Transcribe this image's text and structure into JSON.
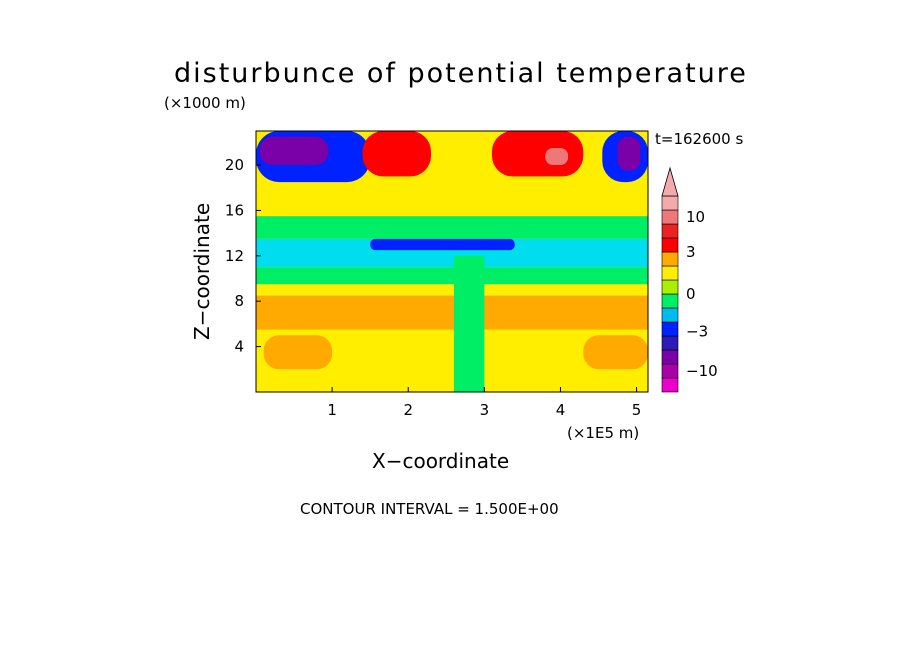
{
  "chart_data": {
    "type": "heatmap",
    "title": "disturbunce of potential temperature",
    "time_label": "t=162600 s",
    "xlabel": "X−coordinate",
    "ylabel": "Z−coordinate",
    "x_scale_label": "(×1E5 m)",
    "y_scale_label": "(×1000 m)",
    "xlim": [
      0,
      5.15
    ],
    "ylim": [
      0,
      23
    ],
    "x_ticks": [
      1,
      2,
      3,
      4,
      5
    ],
    "y_ticks": [
      4,
      8,
      12,
      16,
      20
    ],
    "contour_interval_text": "CONTOUR INTERVAL = 1.500E+00",
    "colorbar": {
      "tick_labels": [
        "10",
        "3",
        "0",
        "−3",
        "−10"
      ],
      "tick_values": [
        10,
        3,
        0,
        -3,
        -10
      ],
      "levels": [
        {
          "lo": -21,
          "hi": -12,
          "color": "#ee00cc"
        },
        {
          "lo": -12,
          "hi": -8,
          "color": "#aa00aa"
        },
        {
          "lo": -8,
          "hi": -5,
          "color": "#7a00a8"
        },
        {
          "lo": -5,
          "hi": -3.5,
          "color": "#2e1ab4"
        },
        {
          "lo": -3.5,
          "hi": -2,
          "color": "#0022ff"
        },
        {
          "lo": -2,
          "hi": -1,
          "color": "#00bbee"
        },
        {
          "lo": -1,
          "hi": 0,
          "color": "#00ee66"
        },
        {
          "lo": 0,
          "hi": 1,
          "color": "#aaee00"
        },
        {
          "lo": 1,
          "hi": 2,
          "color": "#ffee00"
        },
        {
          "lo": 2,
          "hi": 3,
          "color": "#ffaa00"
        },
        {
          "lo": 3,
          "hi": 5,
          "color": "#ff0000"
        },
        {
          "lo": 5,
          "hi": 8,
          "color": "#ee2222"
        },
        {
          "lo": 8,
          "hi": 12,
          "color": "#ee7777"
        },
        {
          "lo": 12,
          "hi": 20,
          "color": "#f4aaaa"
        }
      ],
      "extension_color": "#f4aaaa"
    },
    "field_regions": [
      {
        "name": "lower-warm",
        "value": 1.5,
        "x": [
          0,
          5.15
        ],
        "y": [
          0,
          2
        ],
        "color_role": "yellow"
      },
      {
        "name": "lower-warm-core-left",
        "value": 2.5,
        "x": [
          0.1,
          1.0
        ],
        "y": [
          2,
          5
        ],
        "color_role": "orange"
      },
      {
        "name": "lower-warm-core-right",
        "value": 2.5,
        "x": [
          4.3,
          5.15
        ],
        "y": [
          2,
          5
        ],
        "color_role": "orange"
      },
      {
        "name": "mid-band-orange",
        "value": 2.2,
        "x": [
          0,
          5.15
        ],
        "y": [
          5.5,
          8.5
        ],
        "color_role": "orange"
      },
      {
        "name": "mid-band-yellow",
        "value": 1.5,
        "x": [
          0,
          5.15
        ],
        "y": [
          8.5,
          9.5
        ],
        "color_role": "yellow"
      },
      {
        "name": "green-band",
        "value": -0.5,
        "x": [
          0,
          5.15
        ],
        "y": [
          9.5,
          11
        ],
        "color_role": "green"
      },
      {
        "name": "cyan-band",
        "value": -1.5,
        "x": [
          0,
          5.15
        ],
        "y": [
          11,
          13.5
        ],
        "color_role": "cyan"
      },
      {
        "name": "blue-band-center",
        "value": -3,
        "x": [
          1.5,
          3.4
        ],
        "y": [
          12.5,
          13.5
        ],
        "color_role": "blue"
      },
      {
        "name": "green-upper",
        "value": -0.5,
        "x": [
          0,
          5.15
        ],
        "y": [
          13.5,
          15.5
        ],
        "color_role": "green"
      },
      {
        "name": "yellow-upper",
        "value": 1.0,
        "x": [
          0,
          5.15
        ],
        "y": [
          15.5,
          19
        ],
        "color_role": "yellow"
      },
      {
        "name": "blue-upper-left",
        "value": -3,
        "x": [
          0,
          1.5
        ],
        "y": [
          18.5,
          23
        ],
        "color_role": "blue"
      },
      {
        "name": "purple-upper-left",
        "value": -6,
        "x": [
          0.05,
          0.95
        ],
        "y": [
          20,
          22.5
        ],
        "color_role": "purple"
      },
      {
        "name": "blue-upper-right",
        "value": -3,
        "x": [
          4.55,
          5.15
        ],
        "y": [
          18.5,
          23
        ],
        "color_role": "blue"
      },
      {
        "name": "purple-upper-right",
        "value": -6,
        "x": [
          4.75,
          5.05
        ],
        "y": [
          19.5,
          22.5
        ],
        "color_role": "purple"
      },
      {
        "name": "red-upper-center-left",
        "value": 4,
        "x": [
          1.4,
          2.3
        ],
        "y": [
          19,
          23
        ],
        "color_role": "red"
      },
      {
        "name": "red-upper-center-right",
        "value": 4,
        "x": [
          3.1,
          4.3
        ],
        "y": [
          19,
          23
        ],
        "color_role": "red"
      },
      {
        "name": "pink-upper-right",
        "value": 9,
        "x": [
          3.8,
          4.1
        ],
        "y": [
          20,
          21.5
        ],
        "color_role": "pink"
      },
      {
        "name": "central-wave-column",
        "value": 0.5,
        "x": [
          2.6,
          3.0
        ],
        "y": [
          0,
          12
        ],
        "color_role": "green"
      }
    ]
  },
  "colors": {
    "yellow": "#ffee00",
    "orange": "#ffaa00",
    "green": "#00ee66",
    "lightgreen": "#aaee00",
    "cyan": "#00ddee",
    "blue": "#0022ff",
    "darkblue": "#2e1ab4",
    "purple": "#7a00a8",
    "red": "#ff0000",
    "pink": "#ee7777"
  }
}
